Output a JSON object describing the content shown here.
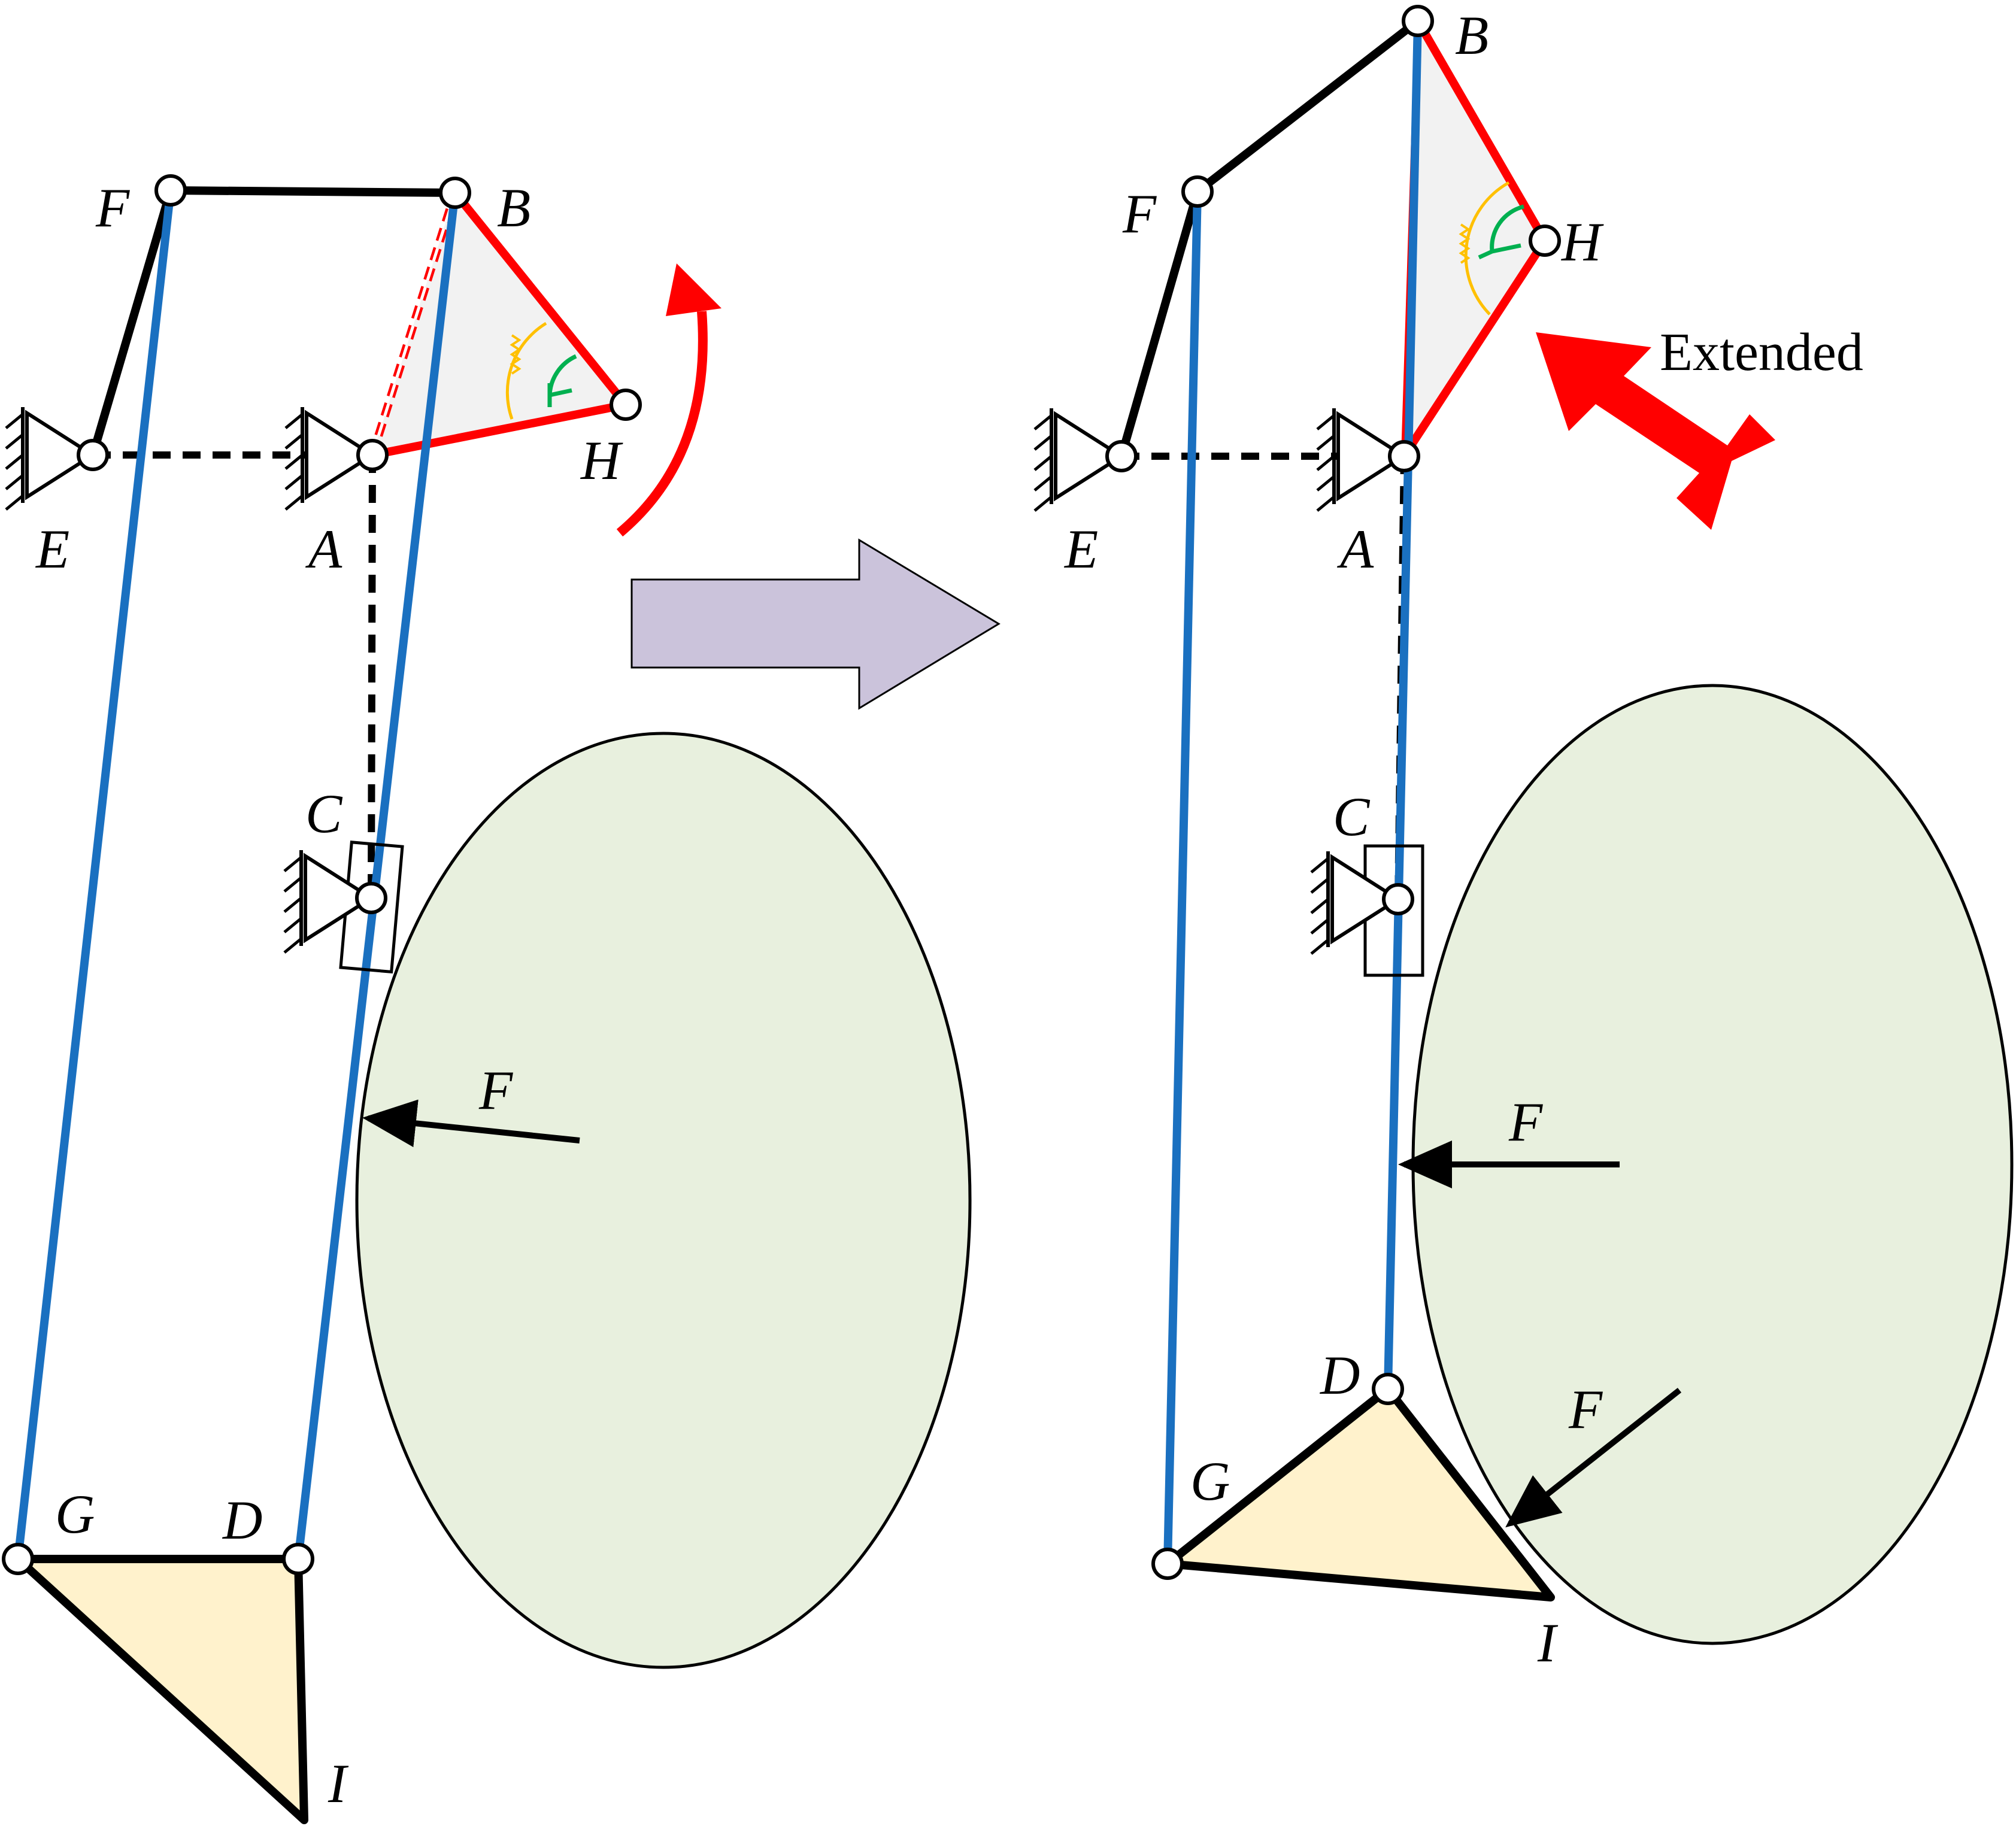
{
  "colors": {
    "link_black": "#000000",
    "link_blue": "#1a70c0",
    "link_red": "#ff0000",
    "triangle_fill": "#f2f2f2",
    "foot_fill": "#fff2cc",
    "ellipse_fill": "#e8f0de",
    "transition_arrow_fill": "#cbc3db",
    "spring_color": "#ffc000",
    "angle_color": "#00b050"
  },
  "left_state": {
    "labels": {
      "F": "F",
      "B": "B",
      "H": "H",
      "E": "E",
      "A": "A",
      "C": "C",
      "G": "G",
      "D": "D",
      "I": "I",
      "force": "F"
    }
  },
  "right_state": {
    "labels": {
      "B": "B",
      "F": "F",
      "H": "H",
      "E": "E",
      "A": "A",
      "C": "C",
      "D": "D",
      "G": "G",
      "I": "I",
      "force_upper": "F",
      "force_lower": "F"
    },
    "status_text": "Extended"
  }
}
